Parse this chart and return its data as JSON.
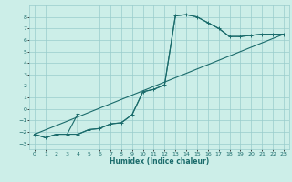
{
  "xlabel": "Humidex (Indice chaleur)",
  "bg_color": "#cceee8",
  "grid_color": "#99cccc",
  "line_color": "#1a6b6b",
  "xlim": [
    -0.5,
    23.5
  ],
  "ylim": [
    -3.5,
    9.0
  ],
  "xticks": [
    0,
    1,
    2,
    3,
    4,
    5,
    6,
    7,
    8,
    9,
    10,
    11,
    12,
    13,
    14,
    15,
    16,
    17,
    18,
    19,
    20,
    21,
    22,
    23
  ],
  "yticks": [
    -3,
    -2,
    -1,
    0,
    1,
    2,
    3,
    4,
    5,
    6,
    7,
    8
  ],
  "line1_x": [
    0,
    1,
    2,
    3,
    4,
    4,
    5,
    6,
    7,
    8,
    9,
    10,
    11,
    12,
    13,
    14,
    15,
    16,
    17,
    18,
    19,
    20,
    21,
    22,
    23
  ],
  "line1_y": [
    -2.2,
    -2.5,
    -2.2,
    -2.2,
    -0.4,
    -2.2,
    -1.8,
    -1.7,
    -1.3,
    -1.2,
    -0.5,
    1.5,
    1.7,
    2.1,
    8.1,
    8.2,
    8.0,
    7.5,
    7.0,
    6.3,
    6.3,
    6.4,
    6.5,
    6.5,
    6.5
  ],
  "line2_x": [
    0,
    1,
    2,
    3,
    4,
    5,
    6,
    7,
    8,
    9,
    10,
    11,
    12,
    13,
    14,
    15,
    16,
    17,
    18,
    19,
    20,
    21,
    22,
    23
  ],
  "line2_y": [
    -2.2,
    -2.5,
    -2.2,
    -2.2,
    -2.2,
    -1.8,
    -1.7,
    -1.3,
    -1.2,
    -0.5,
    1.5,
    1.7,
    2.1,
    8.1,
    8.2,
    8.0,
    7.5,
    7.0,
    6.3,
    6.3,
    6.4,
    6.5,
    6.5,
    6.5
  ],
  "line3_x": [
    0,
    23
  ],
  "line3_y": [
    -2.2,
    6.5
  ]
}
